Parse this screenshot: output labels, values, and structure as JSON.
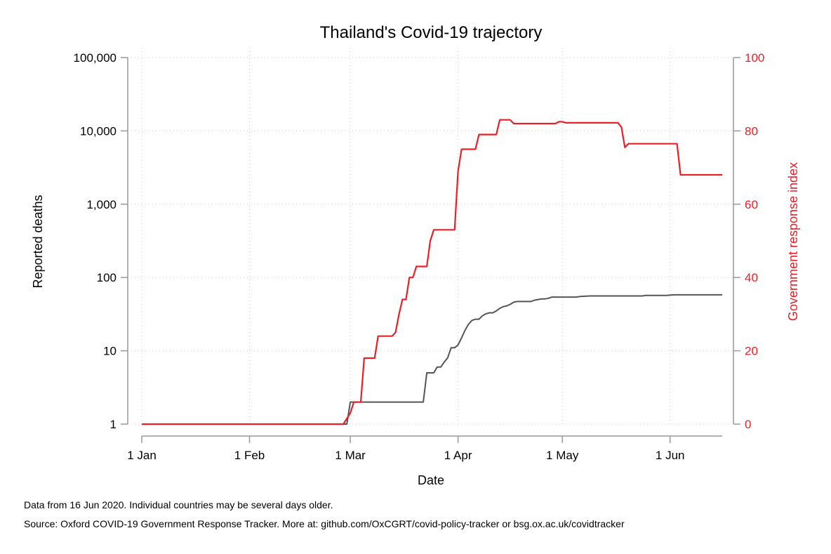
{
  "chart_data": {
    "type": "line",
    "title": "Thailand's Covid-19 trajectory",
    "xlabel": "Date",
    "ylabel": "Reported deaths",
    "y2label": "Government response index",
    "x_ticks": [
      "1 Jan",
      "1 Feb",
      "1 Mar",
      "1 Apr",
      "1 May",
      "1 Jun"
    ],
    "x_tick_dates": [
      "2020-01-01",
      "2020-02-01",
      "2020-03-01",
      "2020-04-01",
      "2020-05-01",
      "2020-06-01"
    ],
    "xlim": [
      "2020-01-01",
      "2020-06-16"
    ],
    "y_scale": "log",
    "ylim": [
      1,
      100000
    ],
    "y_ticks": [
      1,
      10,
      100,
      1000,
      10000,
      100000
    ],
    "y_tick_labels": [
      "1",
      "10",
      "100",
      "1,000",
      "10,000",
      "100,000"
    ],
    "y2lim": [
      0,
      100
    ],
    "y2_ticks": [
      0,
      20,
      40,
      60,
      80,
      100
    ],
    "y2_tick_labels": [
      "0",
      "20",
      "40",
      "60",
      "80",
      "100"
    ],
    "grid": true,
    "series": [
      {
        "axis": "left",
        "color": "#555555",
        "points": [
          [
            "2020-01-01",
            1
          ],
          [
            "2020-02-29",
            1
          ],
          [
            "2020-03-01",
            2
          ],
          [
            "2020-03-22",
            2
          ],
          [
            "2020-03-23",
            5
          ],
          [
            "2020-03-25",
            5
          ],
          [
            "2020-03-26",
            6
          ],
          [
            "2020-03-27",
            6
          ],
          [
            "2020-03-28",
            7
          ],
          [
            "2020-03-29",
            8
          ],
          [
            "2020-03-30",
            11
          ],
          [
            "2020-03-31",
            11
          ],
          [
            "2020-04-01",
            12
          ],
          [
            "2020-04-02",
            15
          ],
          [
            "2020-04-03",
            19
          ],
          [
            "2020-04-04",
            23
          ],
          [
            "2020-04-05",
            26
          ],
          [
            "2020-04-06",
            27
          ],
          [
            "2020-04-07",
            27
          ],
          [
            "2020-04-08",
            30
          ],
          [
            "2020-04-09",
            32
          ],
          [
            "2020-04-10",
            33
          ],
          [
            "2020-04-11",
            33
          ],
          [
            "2020-04-12",
            35
          ],
          [
            "2020-04-13",
            38
          ],
          [
            "2020-04-14",
            40
          ],
          [
            "2020-04-15",
            41
          ],
          [
            "2020-04-16",
            43
          ],
          [
            "2020-04-17",
            46
          ],
          [
            "2020-04-18",
            47
          ],
          [
            "2020-04-22",
            47
          ],
          [
            "2020-04-23",
            49
          ],
          [
            "2020-04-24",
            50
          ],
          [
            "2020-04-25",
            51
          ],
          [
            "2020-04-26",
            51
          ],
          [
            "2020-04-27",
            52
          ],
          [
            "2020-04-28",
            54
          ],
          [
            "2020-05-05",
            54
          ],
          [
            "2020-05-06",
            55
          ],
          [
            "2020-05-09",
            56
          ],
          [
            "2020-05-24",
            56
          ],
          [
            "2020-05-25",
            57
          ],
          [
            "2020-05-31",
            57
          ],
          [
            "2020-06-02",
            58
          ],
          [
            "2020-06-16",
            58
          ]
        ]
      },
      {
        "axis": "right",
        "color": "#e8202a",
        "points": [
          [
            "2020-01-01",
            0
          ],
          [
            "2020-02-28",
            0
          ],
          [
            "2020-03-01",
            3
          ],
          [
            "2020-03-02",
            6
          ],
          [
            "2020-03-04",
            6
          ],
          [
            "2020-03-05",
            18
          ],
          [
            "2020-03-08",
            18
          ],
          [
            "2020-03-09",
            24
          ],
          [
            "2020-03-13",
            24
          ],
          [
            "2020-03-14",
            25
          ],
          [
            "2020-03-15",
            30
          ],
          [
            "2020-03-16",
            34
          ],
          [
            "2020-03-17",
            34
          ],
          [
            "2020-03-18",
            40
          ],
          [
            "2020-03-19",
            40
          ],
          [
            "2020-03-20",
            43
          ],
          [
            "2020-03-23",
            43
          ],
          [
            "2020-03-24",
            50
          ],
          [
            "2020-03-25",
            53
          ],
          [
            "2020-03-31",
            53
          ],
          [
            "2020-04-01",
            69
          ],
          [
            "2020-04-02",
            75
          ],
          [
            "2020-04-06",
            75
          ],
          [
            "2020-04-07",
            79
          ],
          [
            "2020-04-12",
            79
          ],
          [
            "2020-04-13",
            83
          ],
          [
            "2020-04-16",
            83
          ],
          [
            "2020-04-17",
            82
          ],
          [
            "2020-04-29",
            82
          ],
          [
            "2020-04-30",
            82.5
          ],
          [
            "2020-05-01",
            82.5
          ],
          [
            "2020-05-02",
            82.2
          ],
          [
            "2020-05-17",
            82.2
          ],
          [
            "2020-05-18",
            81
          ],
          [
            "2020-05-19",
            75.5
          ],
          [
            "2020-05-20",
            76.5
          ],
          [
            "2020-06-03",
            76.5
          ],
          [
            "2020-06-04",
            68
          ],
          [
            "2020-06-16",
            68
          ]
        ]
      }
    ]
  },
  "notes": {
    "line1": "Data from 16 Jun 2020. Individual countries may be several days older.",
    "line2": "Source: Oxford COVID-19 Government Response Tracker. More at: github.com/OxCGRT/covid-policy-tracker or bsg.ox.ac.uk/covidtracker"
  },
  "colors": {
    "axis_right": "#e8202a",
    "axis": "#999999",
    "grid": "#cccccc"
  }
}
